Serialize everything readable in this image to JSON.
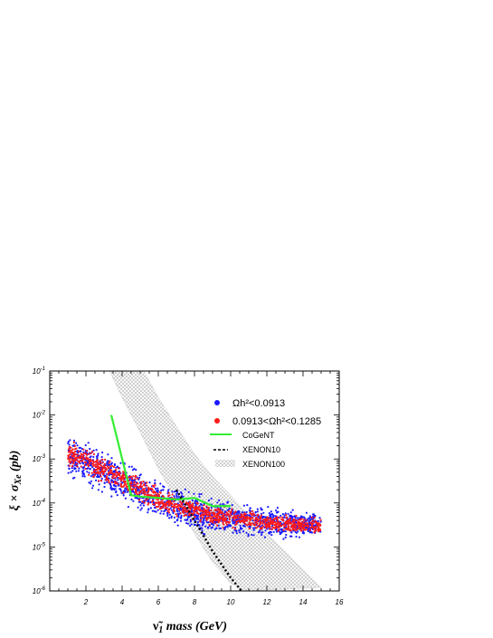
{
  "chart_data": {
    "type": "scatter",
    "xlabel": "ν̃₁ mass (GeV)",
    "ylabel": "ξ × σXe (pb)",
    "xlim": [
      0,
      16
    ],
    "ylim": [
      1e-06,
      0.1
    ],
    "yscale": "log",
    "x_ticks": [
      2,
      4,
      6,
      8,
      10,
      12,
      14,
      16
    ],
    "y_ticks": [
      {
        "value": 1e-06,
        "base": "10",
        "exp": "-6"
      },
      {
        "value": 1e-05,
        "base": "10",
        "exp": "-5"
      },
      {
        "value": 0.0001,
        "base": "10",
        "exp": "-4"
      },
      {
        "value": 0.001,
        "base": "10",
        "exp": "-3"
      },
      {
        "value": 0.01,
        "base": "10",
        "exp": "-2"
      },
      {
        "value": 0.1,
        "base": "10",
        "exp": "-1"
      }
    ],
    "grid": false,
    "legend_position": "top-right",
    "series": [
      {
        "name": "Ωh²<0.0913",
        "kind": "scatter",
        "color": "#1a1aff",
        "band": {
          "x": [
            1,
            2,
            3,
            4,
            5,
            6,
            7,
            8,
            9,
            10,
            11,
            12,
            13,
            14,
            15
          ],
          "y": [
            0.0012,
            0.0008,
            0.0005,
            0.0003,
            0.00018,
            0.00011,
            8e-05,
            6e-05,
            5e-05,
            4.5e-05,
            4e-05,
            3.8e-05,
            3.5e-05,
            3.3e-05,
            3e-05
          ]
        }
      },
      {
        "name": "0.0913<Ωh²<0.1285",
        "kind": "scatter",
        "color": "#ff1a1a",
        "band": {
          "x": [
            1,
            2,
            3,
            4,
            5,
            6,
            7,
            8,
            9,
            10,
            11,
            12,
            13,
            14,
            15
          ],
          "y": [
            0.0013,
            0.0009,
            0.00055,
            0.00034,
            0.0002,
            0.00012,
            8.5e-05,
            6.5e-05,
            5.2e-05,
            4.6e-05,
            4.1e-05,
            3.7e-05,
            3.4e-05,
            3.2e-05,
            3e-05
          ]
        }
      },
      {
        "name": "CoGeNT",
        "kind": "line",
        "color": "#33ee33",
        "x": [
          3.4,
          4.5,
          5.0,
          6.0,
          7.0,
          8.0,
          8.5,
          9.0,
          10.0
        ],
        "y": [
          0.01,
          0.00015,
          0.00014,
          0.00013,
          0.00012,
          0.00013,
          0.000105,
          8.5e-05,
          8.5e-05
        ]
      },
      {
        "name": "XENON10",
        "kind": "dashed",
        "color": "#000000",
        "x": [
          7.0,
          7.5,
          8.0,
          8.5,
          9.0,
          9.5,
          10.0,
          10.6
        ],
        "y": [
          0.0002,
          9e-05,
          4e-05,
          1.8e-05,
          8e-06,
          4e-06,
          2e-06,
          1e-06
        ]
      },
      {
        "name": "XENON100",
        "kind": "hatched-band",
        "color": "#bbbbbb",
        "upper": {
          "x": [
            5.2,
            5.6,
            6.0,
            7.0,
            8.0,
            9.0,
            10.0,
            11.0,
            12.0,
            13.0,
            14.0,
            15.0
          ],
          "y": [
            0.1,
            0.05,
            0.025,
            0.0055,
            0.0013,
            0.0004,
            0.00015,
            5e-05,
            2e-05,
            8e-06,
            3e-06,
            1.2e-06
          ]
        },
        "lower": {
          "x": [
            3.3,
            4.0,
            5.0,
            6.0,
            7.0,
            8.0,
            9.0,
            10.0,
            10.8
          ],
          "y": [
            0.1,
            0.025,
            0.004,
            0.0006,
            0.00011,
            2e-05,
            4.5e-06,
            1.5e-06,
            1e-06
          ]
        }
      }
    ]
  }
}
